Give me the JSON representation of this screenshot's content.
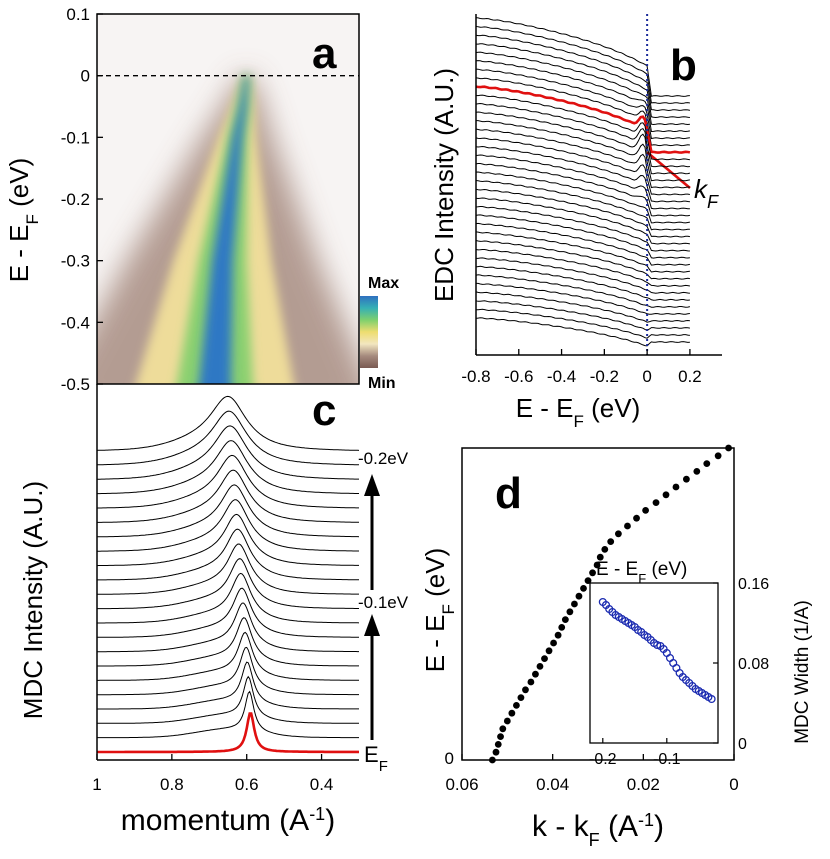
{
  "chart_data": [
    {
      "panel": "a",
      "type": "heatmap",
      "ylabel": "E - E",
      "ylabel_sub": "F",
      "ylabel_unit": "(eV)",
      "y_ticks": [
        "0.1",
        "0",
        "-0.1",
        "-0.2",
        "-0.3",
        "-0.4",
        "-0.5"
      ],
      "ylim": [
        -0.5,
        0.1
      ],
      "xlim": [
        1.0,
        0.3
      ],
      "colorbar": {
        "max_label": "Max",
        "min_label": "Min",
        "colors": [
          "#7a5a52",
          "#a58a7e",
          "#f2e6c0",
          "#eedd70",
          "#7ed06e",
          "#36b0b5",
          "#2f70c0"
        ]
      },
      "dispersion": [
        [
          0.6,
          0.0
        ],
        [
          0.61,
          -0.05
        ],
        [
          0.625,
          -0.1
        ],
        [
          0.635,
          -0.15
        ],
        [
          0.645,
          -0.2
        ],
        [
          0.655,
          -0.25
        ],
        [
          0.665,
          -0.3
        ],
        [
          0.67,
          -0.35
        ],
        [
          0.675,
          -0.4
        ],
        [
          0.68,
          -0.45
        ],
        [
          0.685,
          -0.5
        ]
      ]
    },
    {
      "panel": "b",
      "type": "line",
      "ylabel": "EDC Intensity (A.U.)",
      "xlabel": "E - E",
      "xlabel_sub": "F",
      "xlabel_unit": "(eV)",
      "x_ticks": [
        "-0.8",
        "-0.6",
        "-0.4",
        "-0.2",
        "0",
        "0.2"
      ],
      "xlim": [
        -0.8,
        0.35
      ],
      "num_curves": 36,
      "highlight_index": 8,
      "highlight_color": "#e01010",
      "annotation": "k",
      "annotation_sub": "F",
      "fermi_line_color": "#1a2a9a"
    },
    {
      "panel": "c",
      "type": "line",
      "ylabel": "MDC Intensity (A.U.)",
      "xlabel": "momentum (A",
      "xlabel_sup": "-1",
      "xlabel_close": ")",
      "x_ticks": [
        "1",
        "0.8",
        "0.6",
        "0.4"
      ],
      "xlim": [
        1.0,
        0.3
      ],
      "num_curves": 22,
      "highlight_color": "#e01010",
      "energy_labels": [
        "-0.2eV",
        "-0.1eV",
        "E"
      ],
      "energy_label_sub": "F"
    },
    {
      "panel": "d",
      "type": "scatter",
      "ylabel": "E - E",
      "ylabel_sub": "F",
      "ylabel_unit": "(eV)",
      "xlabel": "k - k",
      "xlabel_sub": "F",
      "xlabel_unit": "(A",
      "xlabel_sup": "-1",
      "xlabel_close": ")",
      "x_ticks": [
        "0.06",
        "0.04",
        "0.02",
        "0"
      ],
      "y_ticks": [
        "0"
      ],
      "xlim": [
        0.06,
        0.0
      ],
      "ylim": [
        0.0,
        -0.2
      ],
      "points": [
        [
          0.0533,
          0.0
        ],
        [
          0.0525,
          -0.005
        ],
        [
          0.052,
          -0.01
        ],
        [
          0.0515,
          -0.015
        ],
        [
          0.051,
          -0.02
        ],
        [
          0.05,
          -0.025
        ],
        [
          0.049,
          -0.03
        ],
        [
          0.048,
          -0.035
        ],
        [
          0.047,
          -0.04
        ],
        [
          0.046,
          -0.045
        ],
        [
          0.0448,
          -0.05
        ],
        [
          0.0438,
          -0.055
        ],
        [
          0.0428,
          -0.06
        ],
        [
          0.0418,
          -0.065
        ],
        [
          0.0408,
          -0.07
        ],
        [
          0.0398,
          -0.075
        ],
        [
          0.0388,
          -0.08
        ],
        [
          0.038,
          -0.085
        ],
        [
          0.0372,
          -0.09
        ],
        [
          0.0362,
          -0.095
        ],
        [
          0.0352,
          -0.1
        ],
        [
          0.0342,
          -0.105
        ],
        [
          0.0332,
          -0.11
        ],
        [
          0.0322,
          -0.115
        ],
        [
          0.0312,
          -0.12
        ],
        [
          0.0302,
          -0.125
        ],
        [
          0.0295,
          -0.13
        ],
        [
          0.0285,
          -0.135
        ],
        [
          0.0272,
          -0.14
        ],
        [
          0.0255,
          -0.145
        ],
        [
          0.0235,
          -0.15
        ],
        [
          0.0215,
          -0.155
        ],
        [
          0.0195,
          -0.16
        ],
        [
          0.0172,
          -0.165
        ],
        [
          0.015,
          -0.17
        ],
        [
          0.0128,
          -0.175
        ],
        [
          0.0105,
          -0.18
        ],
        [
          0.0082,
          -0.185
        ],
        [
          0.006,
          -0.19
        ],
        [
          0.0035,
          -0.195
        ],
        [
          0.0012,
          -0.2
        ]
      ],
      "inset": {
        "type": "scatter",
        "title": "E - E",
        "title_sub": "F",
        "title_unit": "(eV)",
        "ylabel": "MDC Width (1/A)",
        "x_ticks": [
          "-0.2",
          "-0.1"
        ],
        "y_ticks": [
          "0.16",
          "0.08",
          "0"
        ],
        "xlim": [
          -0.22,
          -0.02
        ],
        "ylim": [
          0.0,
          0.16
        ],
        "marker_color": "#1a2ab0",
        "points": [
          [
            -0.2,
            0.141
          ],
          [
            -0.195,
            0.138
          ],
          [
            -0.19,
            0.134
          ],
          [
            -0.185,
            0.131
          ],
          [
            -0.18,
            0.128
          ],
          [
            -0.175,
            0.126
          ],
          [
            -0.17,
            0.124
          ],
          [
            -0.165,
            0.122
          ],
          [
            -0.16,
            0.12
          ],
          [
            -0.155,
            0.118
          ],
          [
            -0.15,
            0.116
          ],
          [
            -0.145,
            0.113
          ],
          [
            -0.14,
            0.111
          ],
          [
            -0.135,
            0.108
          ],
          [
            -0.13,
            0.106
          ],
          [
            -0.125,
            0.103
          ],
          [
            -0.12,
            0.1
          ],
          [
            -0.115,
            0.098
          ],
          [
            -0.11,
            0.097
          ],
          [
            -0.105,
            0.094
          ],
          [
            -0.1,
            0.09
          ],
          [
            -0.095,
            0.085
          ],
          [
            -0.09,
            0.08
          ],
          [
            -0.085,
            0.075
          ],
          [
            -0.08,
            0.07
          ],
          [
            -0.075,
            0.066
          ],
          [
            -0.07,
            0.063
          ],
          [
            -0.065,
            0.06
          ],
          [
            -0.06,
            0.057
          ],
          [
            -0.055,
            0.054
          ],
          [
            -0.05,
            0.052
          ],
          [
            -0.045,
            0.05
          ],
          [
            -0.04,
            0.048
          ],
          [
            -0.035,
            0.046
          ],
          [
            -0.03,
            0.044
          ]
        ]
      }
    }
  ]
}
